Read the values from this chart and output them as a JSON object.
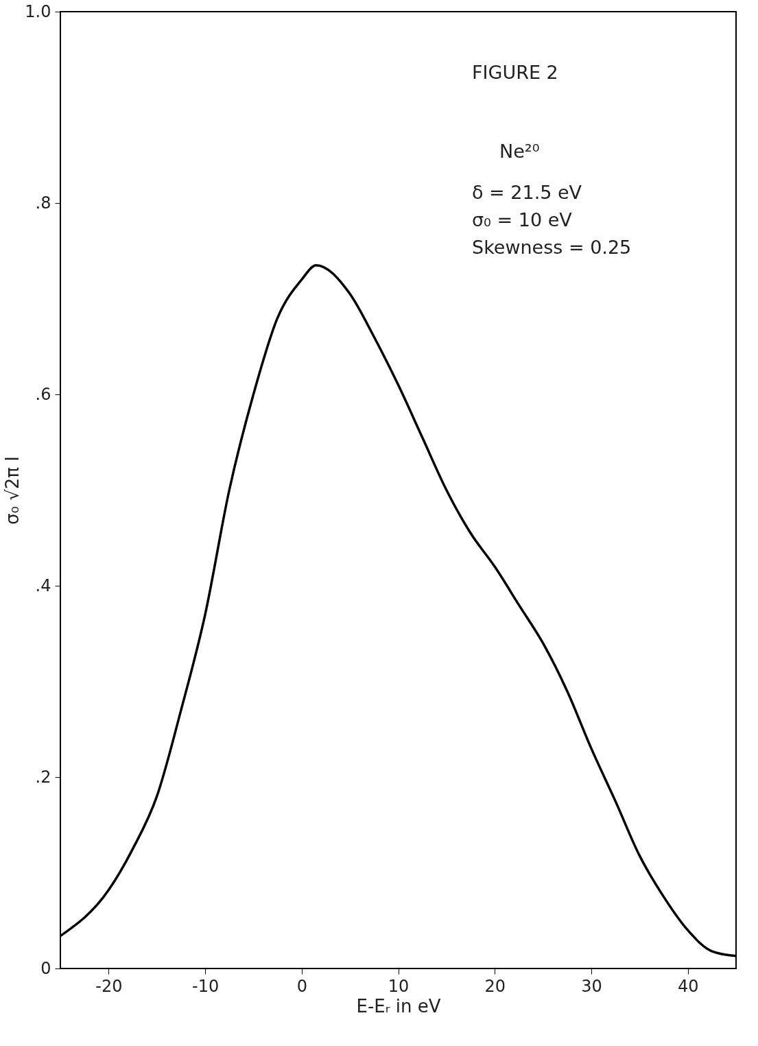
{
  "chart_data": {
    "type": "line",
    "xlabel": "E-Eᵣ in eV",
    "ylabel": "σ₀ √2π I",
    "x": [
      -25,
      -20,
      -17.5,
      -15,
      -12.5,
      -10,
      -7.5,
      -5,
      -2.5,
      0,
      1.5,
      5,
      7.5,
      10,
      12.5,
      15,
      17.5,
      20,
      22.5,
      25,
      27.5,
      30,
      32.5,
      35,
      37.5,
      40,
      42.5,
      45
    ],
    "series": [
      {
        "color": "#000000",
        "values": [
          0.034,
          0.082,
          0.125,
          0.18,
          0.27,
          0.37,
          0.5,
          0.6,
          0.68,
          0.72,
          0.735,
          0.705,
          0.66,
          0.61,
          0.555,
          0.5,
          0.455,
          0.42,
          0.38,
          0.34,
          0.29,
          0.23,
          0.175,
          0.118,
          0.075,
          0.04,
          0.018,
          0.013
        ]
      }
    ],
    "xlim": [
      -25,
      45
    ],
    "xticks": [
      -20,
      -10,
      0,
      10,
      20,
      30,
      40
    ],
    "ylim": [
      0,
      1.0
    ],
    "yticks": [
      {
        "value": 0,
        "label": "0"
      },
      {
        "value": 0.2,
        "label": ".2"
      },
      {
        "value": 0.4,
        "label": ".4"
      },
      {
        "value": 0.6,
        "label": ".6"
      },
      {
        "value": 0.8,
        "label": ".8"
      },
      {
        "value": 1.0,
        "label": "1.0"
      }
    ],
    "annotations": [
      "FIGURE 2",
      "Ne²⁰",
      "δ = 21.5 eV",
      "σ₀ = 10 eV",
      "Skewness = 0.25"
    ],
    "grid": false,
    "marker": "none",
    "line_style": "solid"
  }
}
